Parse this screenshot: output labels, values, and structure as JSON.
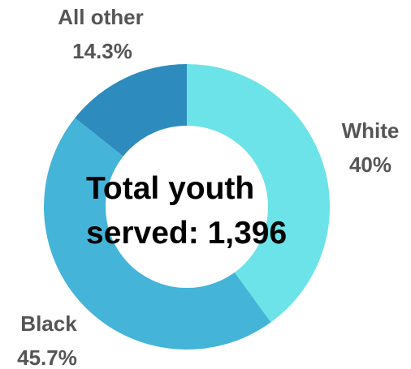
{
  "chart_data": {
    "type": "pie",
    "donut": true,
    "title": "",
    "center_text": [
      "Total youth",
      "served: 1,396"
    ],
    "slices": [
      {
        "label": "White",
        "value_label": "40%",
        "value": 40.0,
        "color": "#6ce3e8"
      },
      {
        "label": "Black",
        "value_label": "45.7%",
        "value": 45.7,
        "color": "#44b4d9"
      },
      {
        "label": "All other",
        "value_label": "14.3%",
        "value": 14.3,
        "color": "#2e8bbd"
      }
    ],
    "legend": "none",
    "start": "top, clockwise"
  }
}
